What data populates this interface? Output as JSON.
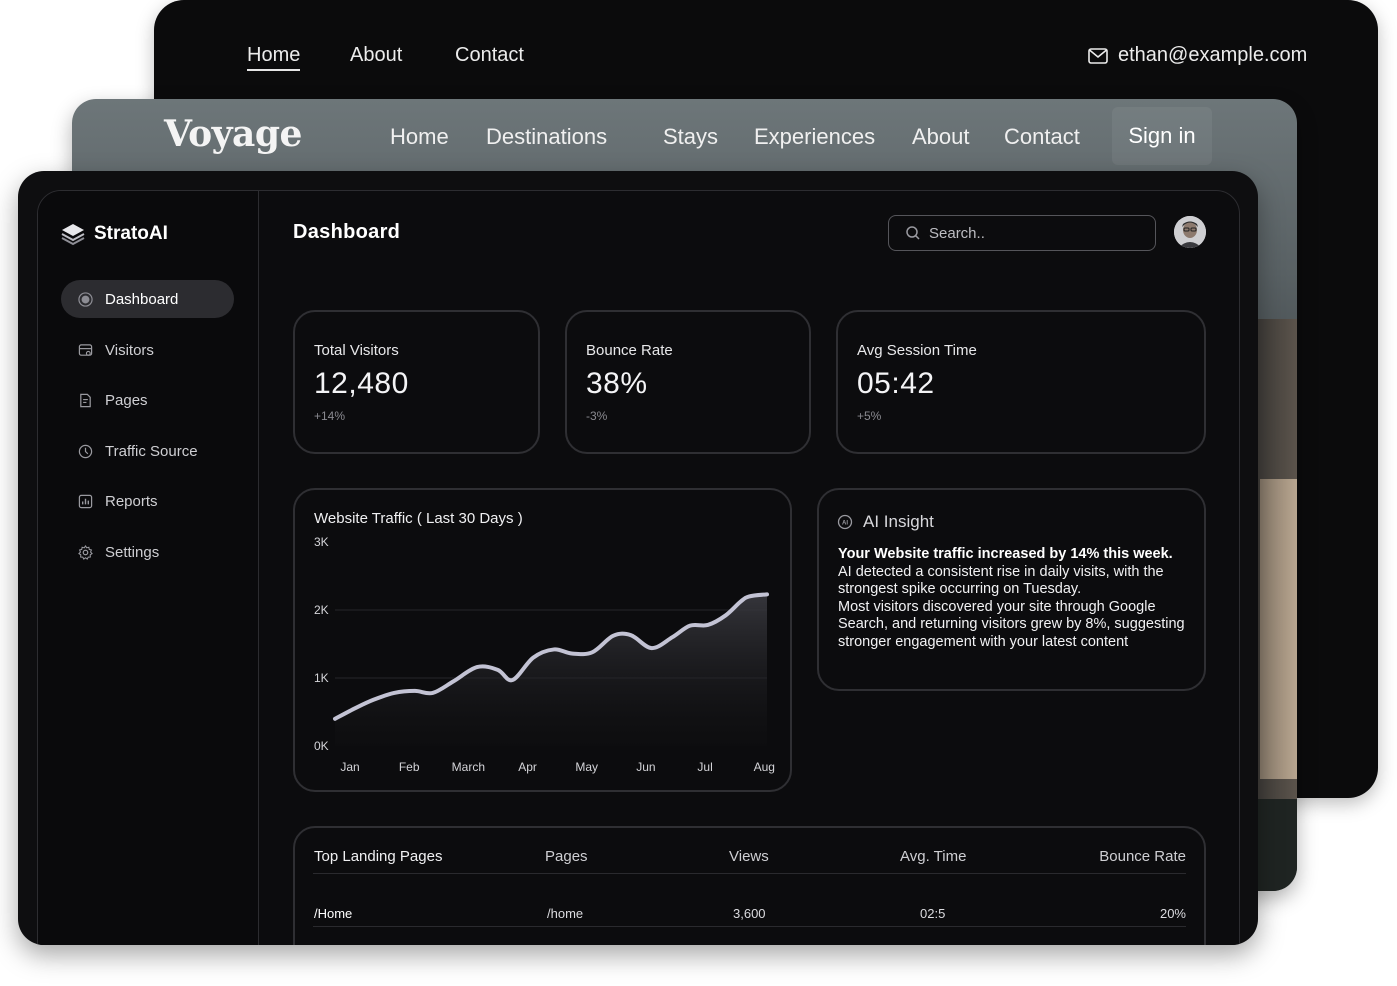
{
  "back_site": {
    "nav": [
      "Home",
      "About",
      "Contact"
    ],
    "email": "ethan@example.com"
  },
  "voyage_site": {
    "logo": "Voyage",
    "nav": [
      "Home",
      "Destinations",
      "Stays",
      "Experiences",
      "About",
      "Contact"
    ],
    "signin": "Sign in"
  },
  "app": {
    "brand": "StratoAI",
    "page_title": "Dashboard",
    "search_placeholder": "Search..",
    "sidebar": [
      {
        "label": "Dashboard",
        "icon": "dashboard-icon",
        "active": true
      },
      {
        "label": "Visitors",
        "icon": "visitors-icon",
        "active": false
      },
      {
        "label": "Pages",
        "icon": "pages-icon",
        "active": false
      },
      {
        "label": "Traffic Source",
        "icon": "traffic-icon",
        "active": false
      },
      {
        "label": "Reports",
        "icon": "reports-icon",
        "active": false
      },
      {
        "label": "Settings",
        "icon": "settings-icon",
        "active": false
      }
    ],
    "stats": [
      {
        "label": "Total Visitors",
        "value": "12,480",
        "delta": "+14%"
      },
      {
        "label": "Bounce Rate",
        "value": "38%",
        "delta": "-3%"
      },
      {
        "label": "Avg Session Time",
        "value": "05:42",
        "delta": "+5%"
      }
    ],
    "ai_insight": {
      "title": "AI Insight",
      "headline": "Your Website traffic increased by 14% this week.",
      "body": "AI detected a consistent rise in daily visits, with the strongest spike occurring on Tuesday.\n Most visitors discovered your site through Google Search, and returning visitors grew by 8%, suggesting stronger engagement with your latest content"
    },
    "table": {
      "title": "Top Landing Pages",
      "columns": [
        "Pages",
        "Views",
        "Avg. Time",
        "Bounce Rate"
      ],
      "rows": [
        {
          "name": "/Home",
          "page": "/home",
          "views": "3,600",
          "avg_time": "02:5",
          "bounce": "20%"
        }
      ]
    }
  },
  "chart_data": {
    "type": "line",
    "title": "Website Traffic ( Last 30 Days )",
    "categories": [
      "Jan",
      "Feb",
      "March",
      "Apr",
      "May",
      "Jun",
      "Jul",
      "Aug"
    ],
    "x": [
      0,
      0.35,
      0.65,
      1.0,
      1.35,
      1.65,
      2.0,
      2.4,
      2.75,
      3.0,
      3.35,
      3.7,
      4.0,
      4.35,
      4.7,
      5.0,
      5.35,
      5.7,
      6.0,
      6.3,
      6.6,
      6.85,
      7.0,
      7.3
    ],
    "y": [
      400,
      560,
      680,
      780,
      810,
      780,
      950,
      1160,
      1120,
      970,
      1300,
      1420,
      1360,
      1380,
      1620,
      1630,
      1440,
      1600,
      1770,
      1780,
      1920,
      2120,
      2200,
      2230
    ],
    "yticks": [
      "0K",
      "1K",
      "2K",
      "3K"
    ],
    "ylim": [
      0,
      3000
    ],
    "colors": {
      "line": "#c3c3d4",
      "grid": "#26262a"
    }
  }
}
